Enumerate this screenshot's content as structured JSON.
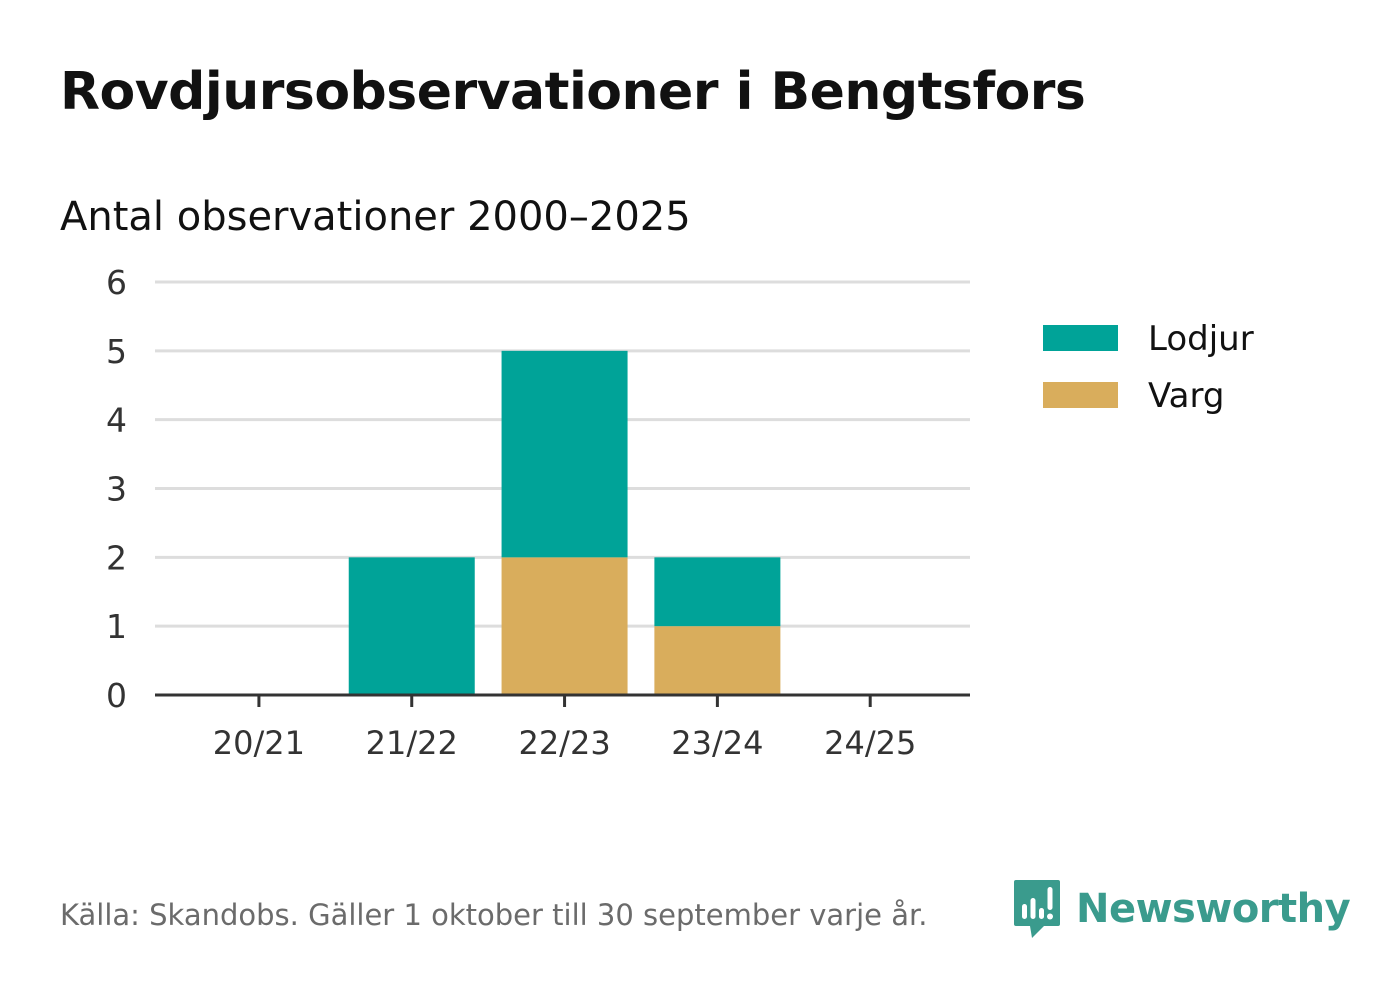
{
  "title": "Rovdjursobservationer i Bengtsfors",
  "subtitle": "Antal observationer 2000–2025",
  "footer": "Källa: Skandobs. Gäller 1 oktober till 30 september varje år.",
  "brand": {
    "name": "Newsworthy",
    "icon": "bar-chart-speech-bubble-icon",
    "color": "#3a9b8d"
  },
  "chart_data": {
    "type": "bar",
    "stacked": true,
    "title": "Rovdjursobservationer i Bengtsfors",
    "subtitle": "Antal observationer 2000–2025",
    "xlabel": "",
    "ylabel": "",
    "categories": [
      "20/21",
      "21/22",
      "22/23",
      "23/24",
      "24/25"
    ],
    "series": [
      {
        "name": "Varg",
        "color": "#d9ad5c",
        "values": [
          0,
          0,
          2,
          1,
          0
        ]
      },
      {
        "name": "Lodjur",
        "color": "#00a398",
        "values": [
          0,
          2,
          3,
          1,
          0
        ]
      }
    ],
    "legend": {
      "placement": "right",
      "order": [
        "Lodjur",
        "Varg"
      ]
    },
    "ylim": [
      0,
      6
    ],
    "yticks": [
      0,
      1,
      2,
      3,
      4,
      5,
      6
    ],
    "grid": true
  }
}
